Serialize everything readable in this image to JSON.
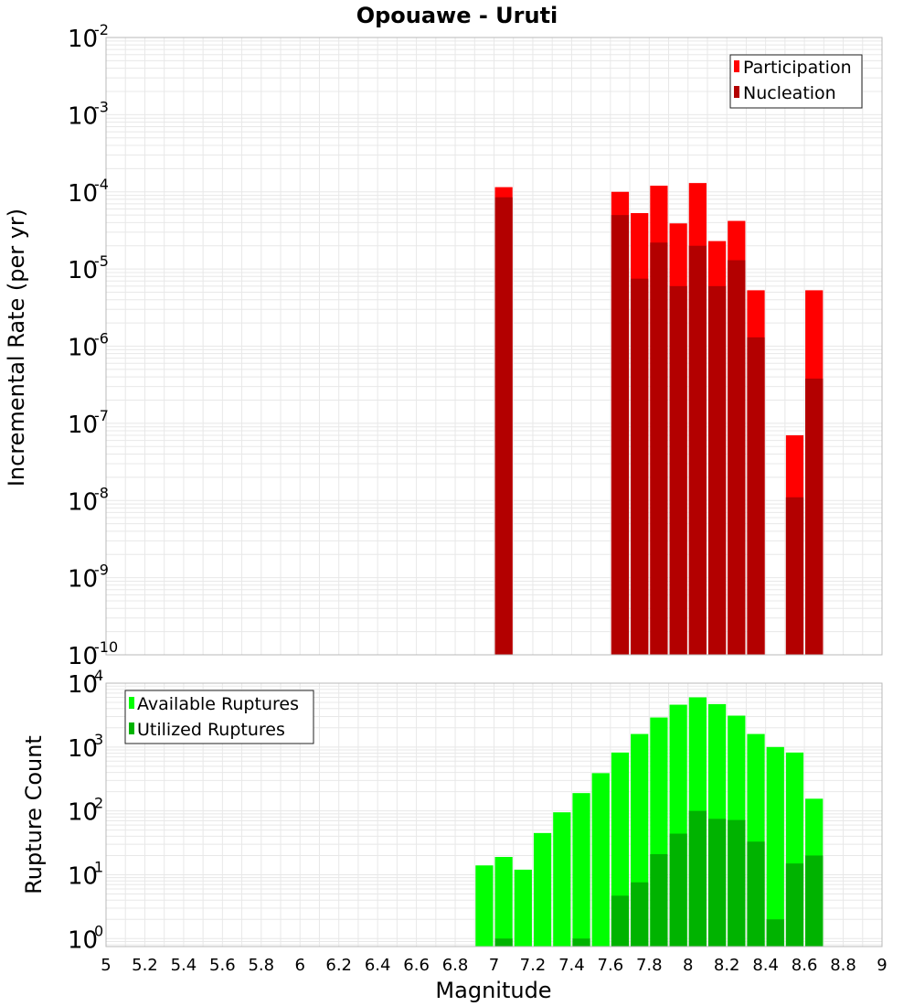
{
  "chart_data": [
    {
      "type": "bar",
      "title": "Opouawe - Uruti",
      "xlabel": "",
      "ylabel": "Incremental Rate (per yr)",
      "xlim": [
        5,
        9
      ],
      "ylim": [
        1e-10,
        0.01
      ],
      "yscale": "log",
      "grid": true,
      "legend_position": "top-right",
      "series": [
        {
          "name": "Participation",
          "color": "#ff0000",
          "points": [
            {
              "x": 7.05,
              "y": 0.000115
            },
            {
              "x": 7.65,
              "y": 0.0001
            },
            {
              "x": 7.75,
              "y": 5.3e-05
            },
            {
              "x": 7.85,
              "y": 0.00012
            },
            {
              "x": 7.95,
              "y": 3.9e-05
            },
            {
              "x": 8.05,
              "y": 0.00013
            },
            {
              "x": 8.15,
              "y": 2.3e-05
            },
            {
              "x": 8.25,
              "y": 4.2e-05
            },
            {
              "x": 8.35,
              "y": 5.3e-06
            },
            {
              "x": 8.55,
              "y": 7e-08
            },
            {
              "x": 8.65,
              "y": 5.3e-06
            }
          ]
        },
        {
          "name": "Nucleation",
          "color": "#b30000",
          "points": [
            {
              "x": 7.05,
              "y": 8.5e-05
            },
            {
              "x": 7.65,
              "y": 5e-05
            },
            {
              "x": 7.75,
              "y": 7.5e-06
            },
            {
              "x": 7.85,
              "y": 2.2e-05
            },
            {
              "x": 7.95,
              "y": 6e-06
            },
            {
              "x": 8.05,
              "y": 2e-05
            },
            {
              "x": 8.15,
              "y": 6e-06
            },
            {
              "x": 8.25,
              "y": 1.3e-05
            },
            {
              "x": 8.35,
              "y": 1.3e-06
            },
            {
              "x": 8.55,
              "y": 1.1e-08
            },
            {
              "x": 8.65,
              "y": 3.8e-07
            }
          ]
        }
      ]
    },
    {
      "type": "bar",
      "title": "",
      "xlabel": "Magnitude",
      "ylabel": "Rupture Count",
      "xlim": [
        5,
        9
      ],
      "ylim": [
        0.75,
        10000
      ],
      "yscale": "log",
      "grid": true,
      "legend_position": "top-left",
      "xticks": [
        "5",
        "5.2",
        "5.4",
        "5.6",
        "5.8",
        "6",
        "6.2",
        "6.4",
        "6.6",
        "6.8",
        "7",
        "7.2",
        "7.4",
        "7.6",
        "7.8",
        "8",
        "8.2",
        "8.4",
        "8.6",
        "8.8",
        "9"
      ],
      "series": [
        {
          "name": "Available Ruptures",
          "color": "#00ff00",
          "points": [
            {
              "x": 6.95,
              "y": 14
            },
            {
              "x": 7.05,
              "y": 19
            },
            {
              "x": 7.15,
              "y": 12
            },
            {
              "x": 7.25,
              "y": 45
            },
            {
              "x": 7.35,
              "y": 95
            },
            {
              "x": 7.45,
              "y": 190
            },
            {
              "x": 7.55,
              "y": 390
            },
            {
              "x": 7.65,
              "y": 820
            },
            {
              "x": 7.75,
              "y": 1600
            },
            {
              "x": 7.85,
              "y": 2900
            },
            {
              "x": 7.95,
              "y": 4600
            },
            {
              "x": 8.05,
              "y": 6000
            },
            {
              "x": 8.15,
              "y": 4700
            },
            {
              "x": 8.25,
              "y": 3100
            },
            {
              "x": 8.35,
              "y": 1600
            },
            {
              "x": 8.45,
              "y": 1000
            },
            {
              "x": 8.55,
              "y": 820
            },
            {
              "x": 8.65,
              "y": 155
            }
          ]
        },
        {
          "name": "Utilized Ruptures",
          "color": "#00b300",
          "points": [
            {
              "x": 7.05,
              "y": 1
            },
            {
              "x": 7.45,
              "y": 1
            },
            {
              "x": 7.65,
              "y": 4.7
            },
            {
              "x": 7.75,
              "y": 7.6
            },
            {
              "x": 7.85,
              "y": 21
            },
            {
              "x": 7.95,
              "y": 44
            },
            {
              "x": 8.05,
              "y": 100
            },
            {
              "x": 8.15,
              "y": 75
            },
            {
              "x": 8.25,
              "y": 72
            },
            {
              "x": 8.35,
              "y": 33
            },
            {
              "x": 8.45,
              "y": 2
            },
            {
              "x": 8.55,
              "y": 15
            },
            {
              "x": 8.65,
              "y": 20
            }
          ]
        }
      ]
    }
  ]
}
